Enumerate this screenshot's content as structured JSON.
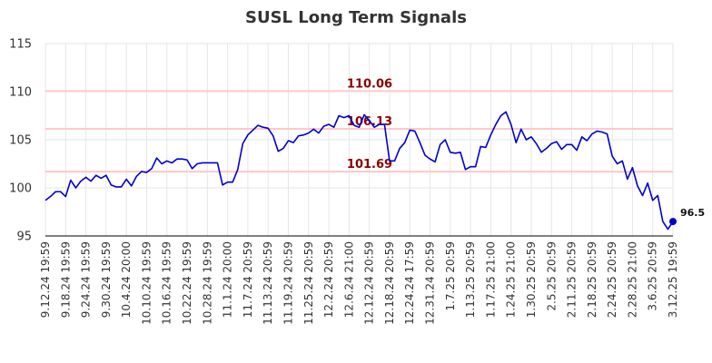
{
  "chart_data": {
    "type": "line",
    "title": "SUSL Long Term Signals",
    "xlabel": "",
    "ylabel": "",
    "ylim": [
      95,
      115
    ],
    "yticks": [
      95,
      100,
      105,
      110,
      115
    ],
    "grid": true,
    "x_tick_labels": [
      "9.12.24 19:59",
      "9.18.24 19:59",
      "9.24.24 19:59",
      "9.30.24 19:59",
      "10.4.24 20:00",
      "10.10.24 19:59",
      "10.16.24 19:59",
      "10.22.24 19:59",
      "10.28.24 19:59",
      "11.1.24 20:00",
      "11.7.24 20:59",
      "11.13.24 20:59",
      "11.19.24 20:59",
      "11.25.24 20:59",
      "12.2.24 20:59",
      "12.6.24 21:00",
      "12.12.24 20:59",
      "12.18.24 20:59",
      "12.24.24 17:59",
      "12.31.24 20:59",
      "1.7.25 20:59",
      "1.13.25 20:59",
      "1.17.25 21:00",
      "1.24.25 21:00",
      "1.30.25 20:59",
      "2.5.25 20:59",
      "2.11.25 20:59",
      "2.18.25 20:59",
      "2.24.25 20:59",
      "2.28.25 21:00",
      "3.6.25 20:59",
      "3.12.25 19:59"
    ],
    "reference_lines": [
      {
        "value": 110.06,
        "label": "110.06",
        "color": "#ffc8c8",
        "label_color": "#8b0000"
      },
      {
        "value": 106.13,
        "label": "106.13",
        "color": "#ffc8c8",
        "label_color": "#8b0000"
      },
      {
        "value": 101.69,
        "label": "101.69",
        "color": "#ffc8c8",
        "label_color": "#8b0000"
      }
    ],
    "line_color": "#0000cc",
    "last_point": {
      "value": 96.5,
      "label": "96.5"
    },
    "series": [
      {
        "values": [
          98.7,
          99.1,
          99.6,
          99.6,
          99.1,
          100.8,
          100.0,
          100.7,
          101.1,
          100.7,
          101.3,
          101.0,
          101.3,
          100.3,
          100.1,
          100.1,
          100.9,
          100.2,
          101.2,
          101.7,
          101.6,
          102.0,
          103.1,
          102.5,
          102.8,
          102.6,
          103.0,
          103.0,
          102.9,
          102.0,
          102.5,
          102.6,
          102.6,
          102.6,
          102.6,
          100.3,
          100.6,
          100.6,
          101.9,
          104.6,
          105.5,
          106.0,
          106.5,
          106.3,
          106.2,
          105.4,
          103.8,
          104.1,
          104.9,
          104.7,
          105.4,
          105.5,
          105.7,
          106.1,
          105.7,
          106.4,
          106.6,
          106.3,
          107.5,
          107.3,
          107.5,
          106.5,
          106.3,
          107.6,
          107.0,
          106.3,
          106.6,
          106.6,
          102.8,
          102.8,
          104.1,
          104.7,
          106.0,
          105.9,
          104.7,
          103.4,
          103.0,
          102.7,
          104.5,
          105.0,
          103.7,
          103.6,
          103.7,
          101.9,
          102.2,
          102.2,
          104.3,
          104.2,
          105.5,
          106.6,
          107.5,
          107.9,
          106.6,
          104.7,
          106.1,
          105.0,
          105.3,
          104.6,
          103.7,
          104.1,
          104.6,
          104.8,
          104.0,
          104.5,
          104.5,
          103.9,
          105.3,
          104.9,
          105.6,
          105.9,
          105.8,
          105.6,
          103.3,
          102.5,
          102.8,
          100.9,
          102.1,
          100.2,
          99.2,
          100.5,
          98.7,
          99.2,
          96.5,
          95.7,
          96.5
        ]
      }
    ]
  }
}
